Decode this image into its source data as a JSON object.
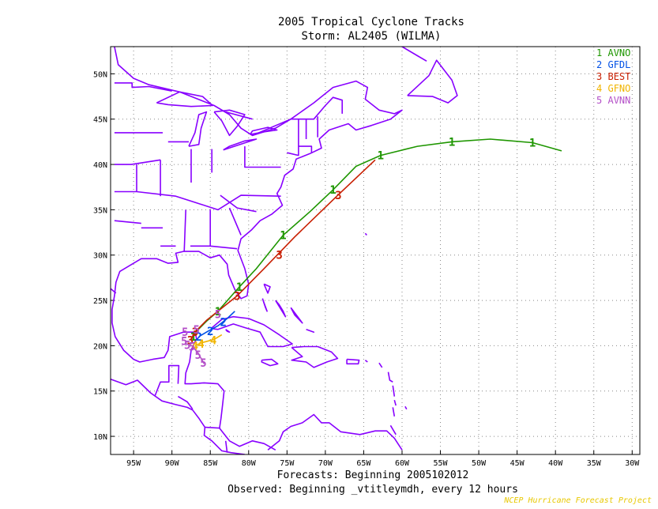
{
  "title": "2005 Tropical Cyclone Tracks",
  "subtitle": "Storm: AL2405 (WILMA)",
  "footer_line1": "Forecasts: Beginning 2005102012",
  "footer_line2": "Observed: Beginning _vtitleymdh, every 12 hours",
  "credit": "NCEP Hurricane Forecast Project",
  "colors": {
    "map": "#8800ff",
    "grid": "#888888",
    "frame": "#000000"
  },
  "chart_data": {
    "type": "map-tracks",
    "xlim": [
      -98,
      -29
    ],
    "ylim": [
      8,
      53
    ],
    "x_ticks": [
      {
        "value": -95,
        "label": "95W"
      },
      {
        "value": -90,
        "label": "90W"
      },
      {
        "value": -85,
        "label": "85W"
      },
      {
        "value": -80,
        "label": "80W"
      },
      {
        "value": -75,
        "label": "75W"
      },
      {
        "value": -70,
        "label": "70W"
      },
      {
        "value": -65,
        "label": "65W"
      },
      {
        "value": -60,
        "label": "60W"
      },
      {
        "value": -55,
        "label": "55W"
      },
      {
        "value": -50,
        "label": "50W"
      },
      {
        "value": -45,
        "label": "45W"
      },
      {
        "value": -40,
        "label": "40W"
      },
      {
        "value": -35,
        "label": "35W"
      },
      {
        "value": -30,
        "label": "30W"
      }
    ],
    "y_ticks": [
      {
        "value": 10,
        "label": "10N"
      },
      {
        "value": 15,
        "label": "15N"
      },
      {
        "value": 20,
        "label": "20N"
      },
      {
        "value": 25,
        "label": "25N"
      },
      {
        "value": 30,
        "label": "30N"
      },
      {
        "value": 35,
        "label": "35N"
      },
      {
        "value": 40,
        "label": "40N"
      },
      {
        "value": 45,
        "label": "45N"
      },
      {
        "value": 50,
        "label": "50N"
      }
    ],
    "grid": true,
    "legend_position": "top-right",
    "series": [
      {
        "id": "1",
        "name": "AVNO",
        "color": "#1e9600",
        "points": [
          [
            -87.2,
            21.0
          ],
          [
            -86.8,
            21.6
          ],
          [
            -85.5,
            22.7
          ],
          [
            -84.0,
            23.8
          ],
          [
            -81.2,
            26.5
          ],
          [
            -79.0,
            28.5
          ],
          [
            -75.5,
            32.2
          ],
          [
            -72.0,
            34.8
          ],
          [
            -69.0,
            37.2
          ],
          [
            -66.0,
            39.8
          ],
          [
            -62.8,
            41.0
          ],
          [
            -58.0,
            42.0
          ],
          [
            -53.5,
            42.5
          ],
          [
            -48.5,
            42.8
          ],
          [
            -43.0,
            42.4
          ],
          [
            -39.2,
            41.5
          ]
        ],
        "markers": [
          [
            -87.2,
            21.0
          ],
          [
            -84.0,
            23.8
          ],
          [
            -81.2,
            26.5
          ],
          [
            -75.5,
            32.2
          ],
          [
            -69.0,
            37.2
          ],
          [
            -62.8,
            41.0
          ],
          [
            -53.5,
            42.5
          ],
          [
            -43.0,
            42.4
          ]
        ]
      },
      {
        "id": "2",
        "name": "GFDL",
        "color": "#0050e6",
        "points": [
          [
            -86.5,
            21.0
          ],
          [
            -85.3,
            21.6
          ],
          [
            -84.0,
            22.2
          ],
          [
            -82.8,
            23.0
          ],
          [
            -81.8,
            23.8
          ]
        ],
        "markers": [
          [
            -86.5,
            21.0
          ],
          [
            -85.0,
            21.6
          ],
          [
            -83.3,
            22.6
          ]
        ]
      },
      {
        "id": "3",
        "name": "BEST",
        "color": "#c81e00",
        "points": [
          [
            -87.6,
            20.6
          ],
          [
            -87.0,
            21.5
          ],
          [
            -85.5,
            22.8
          ],
          [
            -84.0,
            23.8
          ],
          [
            -81.5,
            25.5
          ],
          [
            -78.0,
            28.5
          ],
          [
            -74.0,
            32.0
          ],
          [
            -68.5,
            36.5
          ],
          [
            -63.5,
            40.5
          ]
        ],
        "markers": [
          [
            -87.6,
            20.6
          ],
          [
            -87.0,
            21.5
          ],
          [
            -81.5,
            25.5
          ],
          [
            -76.0,
            30.0
          ],
          [
            -68.3,
            36.6
          ]
        ]
      },
      {
        "id": "4",
        "name": "GFNO",
        "color": "#f0b400",
        "points": [
          [
            -87.0,
            20.0
          ],
          [
            -86.5,
            20.2
          ],
          [
            -85.8,
            20.4
          ],
          [
            -84.5,
            20.7
          ],
          [
            -83.5,
            21.2
          ]
        ],
        "markers": [
          [
            -87.0,
            20.0
          ],
          [
            -86.2,
            20.2
          ],
          [
            -84.6,
            20.6
          ]
        ]
      },
      {
        "id": "5",
        "name": "AVNN",
        "color": "#b450c8",
        "points": [
          [
            -87.2,
            19.8
          ],
          [
            -86.6,
            19.2
          ],
          [
            -86.2,
            18.6
          ],
          [
            -85.8,
            18.0
          ]
        ],
        "markers": [
          [
            -88.3,
            21.5
          ],
          [
            -88.4,
            20.5
          ],
          [
            -88.0,
            20.1
          ],
          [
            -87.4,
            19.9
          ],
          [
            -86.6,
            19.0
          ],
          [
            -85.9,
            18.1
          ],
          [
            -86.8,
            21.8
          ],
          [
            -84.0,
            23.5
          ]
        ]
      }
    ]
  }
}
